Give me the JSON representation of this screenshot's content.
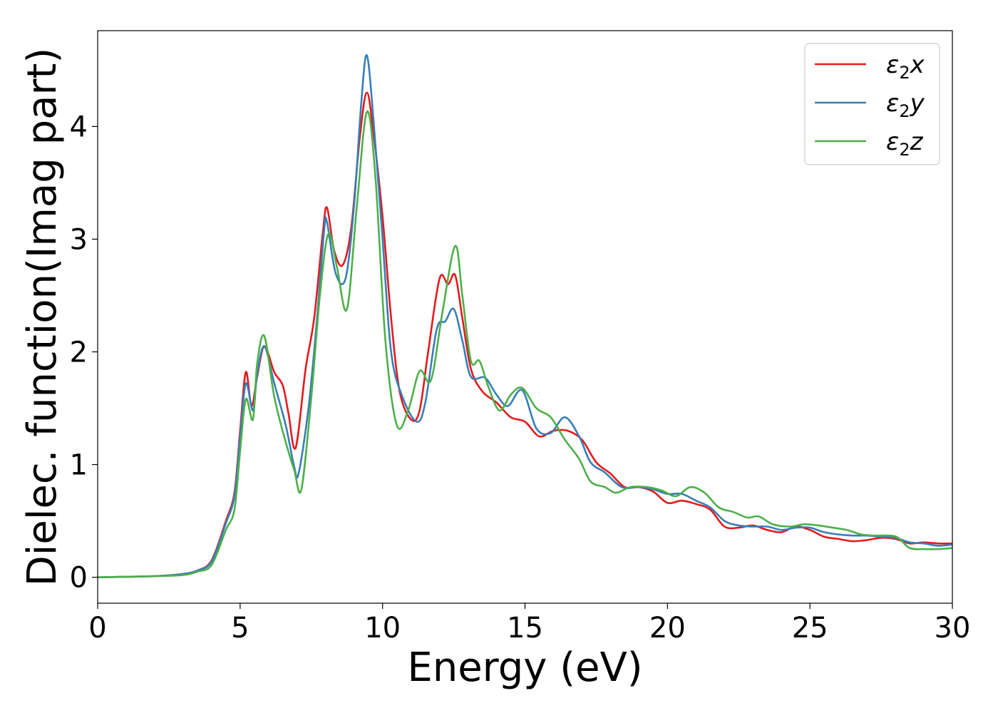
{
  "chart_data": {
    "type": "line",
    "xlabel": "Energy (eV)",
    "ylabel": "Dielec. function(Imag part)",
    "xlim": [
      0,
      30
    ],
    "ylim": [
      -0.23,
      4.85
    ],
    "xticks": [
      0,
      5,
      10,
      15,
      20,
      25,
      30
    ],
    "yticks": [
      0,
      1,
      2,
      3,
      4
    ],
    "grid": false,
    "legend_position": "top-right",
    "series": [
      {
        "name": "x",
        "label_prefix": "ε",
        "label_sub": "2",
        "label_var": "x",
        "color": "#e41a1c",
        "points": [
          [
            0,
            0
          ],
          [
            2,
            0.01
          ],
          [
            3,
            0.03
          ],
          [
            3.5,
            0.06
          ],
          [
            4,
            0.15
          ],
          [
            4.5,
            0.5
          ],
          [
            4.8,
            0.75
          ],
          [
            5,
            1.3
          ],
          [
            5.2,
            1.82
          ],
          [
            5.4,
            1.52
          ],
          [
            5.6,
            1.78
          ],
          [
            5.85,
            2.05
          ],
          [
            6.2,
            1.82
          ],
          [
            6.5,
            1.7
          ],
          [
            6.7,
            1.45
          ],
          [
            6.95,
            1.15
          ],
          [
            7.3,
            1.85
          ],
          [
            7.6,
            2.3
          ],
          [
            7.9,
            3.05
          ],
          [
            8.05,
            3.28
          ],
          [
            8.3,
            2.9
          ],
          [
            8.6,
            2.77
          ],
          [
            8.9,
            3.1
          ],
          [
            9.2,
            3.9
          ],
          [
            9.45,
            4.3
          ],
          [
            9.7,
            3.9
          ],
          [
            10,
            3.2
          ],
          [
            10.3,
            2.3
          ],
          [
            10.6,
            1.65
          ],
          [
            11,
            1.4
          ],
          [
            11.3,
            1.48
          ],
          [
            11.6,
            2.0
          ],
          [
            12,
            2.65
          ],
          [
            12.3,
            2.6
          ],
          [
            12.55,
            2.68
          ],
          [
            12.8,
            2.3
          ],
          [
            13.1,
            1.85
          ],
          [
            13.5,
            1.65
          ],
          [
            14,
            1.55
          ],
          [
            14.5,
            1.42
          ],
          [
            15,
            1.38
          ],
          [
            15.5,
            1.25
          ],
          [
            16,
            1.3
          ],
          [
            16.5,
            1.3
          ],
          [
            17,
            1.22
          ],
          [
            17.5,
            1.02
          ],
          [
            18,
            0.92
          ],
          [
            18.5,
            0.8
          ],
          [
            19,
            0.8
          ],
          [
            19.5,
            0.76
          ],
          [
            20,
            0.66
          ],
          [
            20.5,
            0.68
          ],
          [
            21,
            0.65
          ],
          [
            21.5,
            0.6
          ],
          [
            22,
            0.45
          ],
          [
            22.5,
            0.44
          ],
          [
            23,
            0.46
          ],
          [
            23.5,
            0.42
          ],
          [
            24,
            0.4
          ],
          [
            24.5,
            0.45
          ],
          [
            25,
            0.42
          ],
          [
            25.5,
            0.36
          ],
          [
            26,
            0.34
          ],
          [
            26.5,
            0.32
          ],
          [
            27,
            0.33
          ],
          [
            27.5,
            0.35
          ],
          [
            28,
            0.34
          ],
          [
            28.5,
            0.3
          ],
          [
            29,
            0.31
          ],
          [
            29.5,
            0.3
          ],
          [
            30,
            0.3
          ]
        ]
      },
      {
        "name": "y",
        "label_prefix": "ε",
        "label_sub": "2",
        "label_var": "y",
        "color": "#377eb8",
        "points": [
          [
            0,
            0
          ],
          [
            2,
            0.01
          ],
          [
            3,
            0.03
          ],
          [
            3.5,
            0.06
          ],
          [
            4,
            0.14
          ],
          [
            4.5,
            0.48
          ],
          [
            4.8,
            0.72
          ],
          [
            5,
            1.25
          ],
          [
            5.2,
            1.72
          ],
          [
            5.45,
            1.48
          ],
          [
            5.6,
            1.8
          ],
          [
            5.85,
            2.05
          ],
          [
            6.2,
            1.72
          ],
          [
            6.6,
            1.35
          ],
          [
            6.9,
            0.98
          ],
          [
            7.05,
            0.92
          ],
          [
            7.4,
            1.5
          ],
          [
            7.7,
            2.3
          ],
          [
            7.95,
            3.08
          ],
          [
            8.05,
            3.15
          ],
          [
            8.35,
            2.7
          ],
          [
            8.7,
            2.65
          ],
          [
            9.0,
            3.3
          ],
          [
            9.25,
            4.2
          ],
          [
            9.45,
            4.63
          ],
          [
            9.7,
            4.0
          ],
          [
            10,
            3.0
          ],
          [
            10.3,
            2.0
          ],
          [
            10.7,
            1.6
          ],
          [
            11.2,
            1.38
          ],
          [
            11.5,
            1.55
          ],
          [
            11.9,
            2.2
          ],
          [
            12.2,
            2.27
          ],
          [
            12.5,
            2.38
          ],
          [
            12.8,
            2.1
          ],
          [
            13.1,
            1.78
          ],
          [
            13.6,
            1.77
          ],
          [
            14,
            1.62
          ],
          [
            14.4,
            1.52
          ],
          [
            14.9,
            1.66
          ],
          [
            15.4,
            1.32
          ],
          [
            15.9,
            1.28
          ],
          [
            16.4,
            1.42
          ],
          [
            16.9,
            1.25
          ],
          [
            17.3,
            1.02
          ],
          [
            17.8,
            0.93
          ],
          [
            18.4,
            0.8
          ],
          [
            19,
            0.8
          ],
          [
            19.5,
            0.78
          ],
          [
            20,
            0.74
          ],
          [
            20.5,
            0.74
          ],
          [
            21,
            0.68
          ],
          [
            21.5,
            0.62
          ],
          [
            22,
            0.5
          ],
          [
            22.5,
            0.46
          ],
          [
            23,
            0.45
          ],
          [
            23.5,
            0.45
          ],
          [
            24,
            0.42
          ],
          [
            24.5,
            0.44
          ],
          [
            25,
            0.44
          ],
          [
            25.5,
            0.4
          ],
          [
            26,
            0.38
          ],
          [
            26.5,
            0.37
          ],
          [
            27,
            0.37
          ],
          [
            27.5,
            0.36
          ],
          [
            28,
            0.35
          ],
          [
            28.5,
            0.31
          ],
          [
            29,
            0.3
          ],
          [
            29.5,
            0.28
          ],
          [
            30,
            0.29
          ]
        ]
      },
      {
        "name": "z",
        "label_prefix": "ε",
        "label_sub": "2",
        "label_var": "z",
        "color": "#4daf4a",
        "points": [
          [
            0,
            0
          ],
          [
            2,
            0.01
          ],
          [
            3,
            0.02
          ],
          [
            3.5,
            0.05
          ],
          [
            4,
            0.11
          ],
          [
            4.5,
            0.42
          ],
          [
            4.8,
            0.6
          ],
          [
            5,
            1.12
          ],
          [
            5.2,
            1.58
          ],
          [
            5.45,
            1.4
          ],
          [
            5.6,
            1.9
          ],
          [
            5.85,
            2.14
          ],
          [
            6.2,
            1.6
          ],
          [
            6.6,
            1.2
          ],
          [
            6.9,
            0.95
          ],
          [
            7.15,
            0.78
          ],
          [
            7.5,
            1.6
          ],
          [
            7.8,
            2.5
          ],
          [
            8.1,
            3.05
          ],
          [
            8.4,
            2.75
          ],
          [
            8.75,
            2.38
          ],
          [
            9.1,
            3.3
          ],
          [
            9.45,
            4.13
          ],
          [
            9.75,
            3.55
          ],
          [
            10.1,
            2.1
          ],
          [
            10.5,
            1.35
          ],
          [
            10.9,
            1.48
          ],
          [
            11.3,
            1.83
          ],
          [
            11.7,
            1.75
          ],
          [
            12.1,
            2.35
          ],
          [
            12.55,
            2.94
          ],
          [
            12.8,
            2.5
          ],
          [
            13.1,
            1.92
          ],
          [
            13.4,
            1.92
          ],
          [
            13.7,
            1.7
          ],
          [
            14.1,
            1.48
          ],
          [
            14.5,
            1.62
          ],
          [
            14.9,
            1.68
          ],
          [
            15.4,
            1.5
          ],
          [
            15.9,
            1.42
          ],
          [
            16.4,
            1.22
          ],
          [
            16.9,
            1.05
          ],
          [
            17.3,
            0.85
          ],
          [
            17.8,
            0.8
          ],
          [
            18.2,
            0.75
          ],
          [
            18.7,
            0.8
          ],
          [
            19.3,
            0.8
          ],
          [
            19.8,
            0.77
          ],
          [
            20.3,
            0.72
          ],
          [
            20.8,
            0.8
          ],
          [
            21.3,
            0.75
          ],
          [
            21.8,
            0.62
          ],
          [
            22.3,
            0.58
          ],
          [
            22.8,
            0.53
          ],
          [
            23.2,
            0.54
          ],
          [
            23.7,
            0.47
          ],
          [
            24.3,
            0.45
          ],
          [
            24.8,
            0.47
          ],
          [
            25.3,
            0.46
          ],
          [
            25.8,
            0.44
          ],
          [
            26.3,
            0.42
          ],
          [
            26.8,
            0.38
          ],
          [
            27.3,
            0.37
          ],
          [
            27.8,
            0.37
          ],
          [
            28.1,
            0.35
          ],
          [
            28.5,
            0.26
          ],
          [
            29,
            0.25
          ],
          [
            29.5,
            0.25
          ],
          [
            30,
            0.26
          ]
        ]
      }
    ]
  }
}
